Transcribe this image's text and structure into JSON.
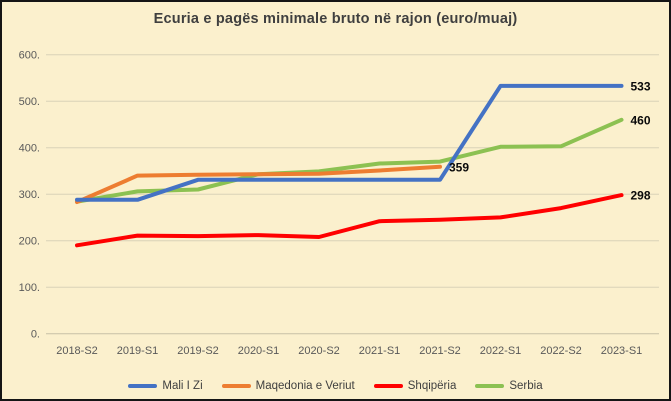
{
  "chart_data": {
    "type": "line",
    "title": "Ecuria e pagës minimale bruto në rajon (euro/muaj)",
    "categories": [
      "2018-S2",
      "2019-S1",
      "2019-S2",
      "2020-S1",
      "2020-S2",
      "2021-S1",
      "2021-S2",
      "2022-S1",
      "2022-S2",
      "2023-S1"
    ],
    "series": [
      {
        "name": "Mali I Zi",
        "color": "#4472C4",
        "values": [
          288,
          288,
          331,
          331,
          331,
          331,
          331,
          533,
          533,
          533
        ],
        "end_label": "533"
      },
      {
        "name": "Maqedonia e Veriut",
        "color": "#ED7D31",
        "values": [
          283,
          340,
          342,
          343,
          344,
          351,
          359,
          null,
          null,
          null
        ],
        "end_label": "359"
      },
      {
        "name": "Shqipëria",
        "color": "#FF0000",
        "values": [
          190,
          211,
          210,
          212,
          208,
          242,
          245,
          250,
          270,
          298
        ],
        "end_label": "298"
      },
      {
        "name": "Serbia",
        "color": "#8CC152",
        "values": [
          284,
          306,
          310,
          343,
          349,
          366,
          370,
          402,
          403,
          460
        ],
        "end_label": "460"
      }
    ],
    "y_axis": {
      "min": 0,
      "max": 600,
      "step": 100,
      "tick_labels": [
        "0.",
        "100.",
        "200.",
        "300.",
        "400.",
        "500.",
        "600."
      ]
    },
    "grid": true,
    "legend_position": "bottom",
    "ylim": [
      0,
      600
    ]
  },
  "colors": {
    "background": "#FBF0CD",
    "frame_border": "#151515",
    "gridline": "#DAD2B8",
    "axis_line": "#C8C0A6",
    "axis_text": "#595959",
    "title_text": "#3F3F3F",
    "data_label_text": "#0A0A0A"
  }
}
